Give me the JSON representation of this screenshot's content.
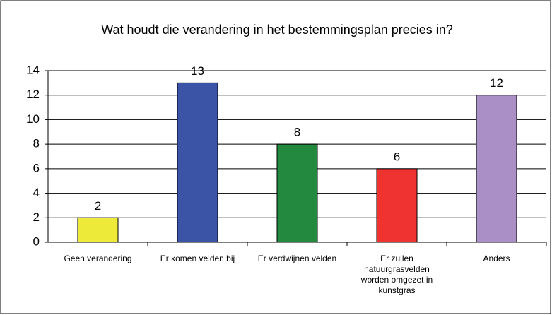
{
  "chart_data": {
    "type": "bar",
    "title": "Wat houdt die verandering in het bestemmingsplan precies in?",
    "categories": [
      "Geen verandering",
      "Er komen velden bij",
      "Er verdwijnen velden",
      "Er zullen natuurgrasvelden worden omgezet in kunstgras",
      "Anders"
    ],
    "values": [
      2,
      13,
      8,
      6,
      12
    ],
    "colors": [
      "#eeea3a",
      "#3c54a6",
      "#22893f",
      "#ee3331",
      "#a98fc6"
    ],
    "ylim": [
      0,
      14
    ],
    "yticks": [
      0,
      2,
      4,
      6,
      8,
      10,
      12,
      14
    ],
    "grid": true
  }
}
